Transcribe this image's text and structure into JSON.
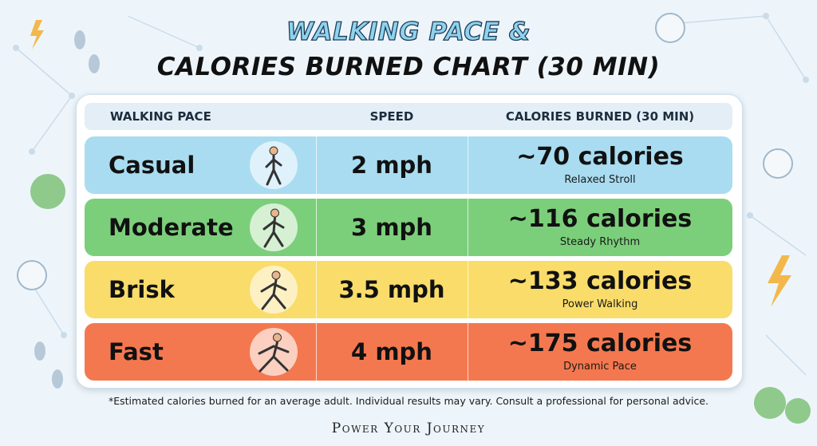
{
  "header": {
    "title_line1": "WALKING PACE &",
    "title_line2": "CALORIES BURNED CHART (30 MIN)"
  },
  "table": {
    "columns": [
      "WALKING PACE",
      "SPEED",
      "CALORIES BURNED (30 MIN)"
    ],
    "rows": [
      {
        "pace": "Casual",
        "speed": "2 mph",
        "calories": "~70 calories",
        "note": "Relaxed Stroll"
      },
      {
        "pace": "Moderate",
        "speed": "3 mph",
        "calories": "~116 calories",
        "note": "Steady Rhythm"
      },
      {
        "pace": "Brisk",
        "speed": "3.5 mph",
        "calories": "~133 calories",
        "note": "Power Walking"
      },
      {
        "pace": "Fast",
        "speed": "4 mph",
        "calories": "~175 calories",
        "note": "Dynamic Pace"
      }
    ]
  },
  "footnote": "*Estimated calories burned for an average adult. Individual results may vary. Consult a professional for personal advice.",
  "brand": "Power Your Journey"
}
